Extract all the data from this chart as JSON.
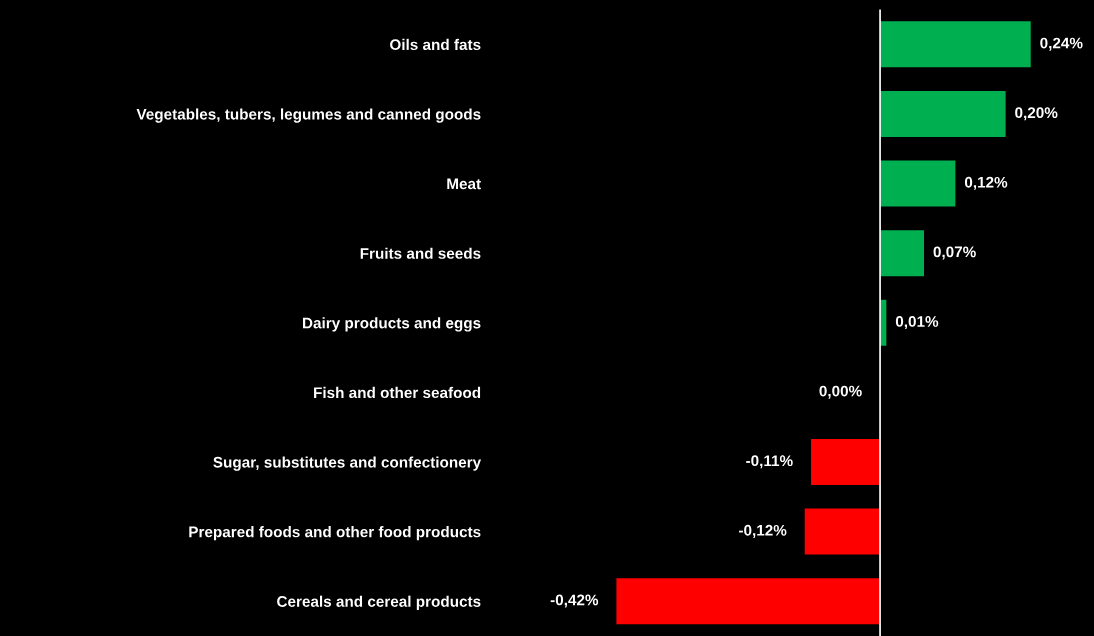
{
  "chart_data": {
    "type": "bar",
    "orientation": "horizontal",
    "categories": [
      "Oils and fats",
      "Vegetables, tubers, legumes and canned goods",
      "Meat",
      "Fruits and seeds",
      "Dairy products and eggs",
      "Fish and other seafood",
      "Sugar, substitutes and confectionery",
      "Prepared foods and other food products",
      "Cereals and cereal products"
    ],
    "values": [
      0.24,
      0.2,
      0.12,
      0.07,
      0.01,
      0.0,
      -0.11,
      -0.12,
      -0.42
    ],
    "colors": [
      "#00b050",
      "#00b050",
      "#00b050",
      "#00b050",
      "#00b050",
      "#00b050",
      "#ff0000",
      "#ff0000",
      "#ff0000"
    ],
    "value_labels": [
      "0,24%",
      "0,20%",
      "0,12%",
      "0,07%",
      "0,01%",
      "0,00%",
      "-0,11%",
      "-0,12%",
      "-0,42%"
    ],
    "legend": false,
    "grid": false
  }
}
